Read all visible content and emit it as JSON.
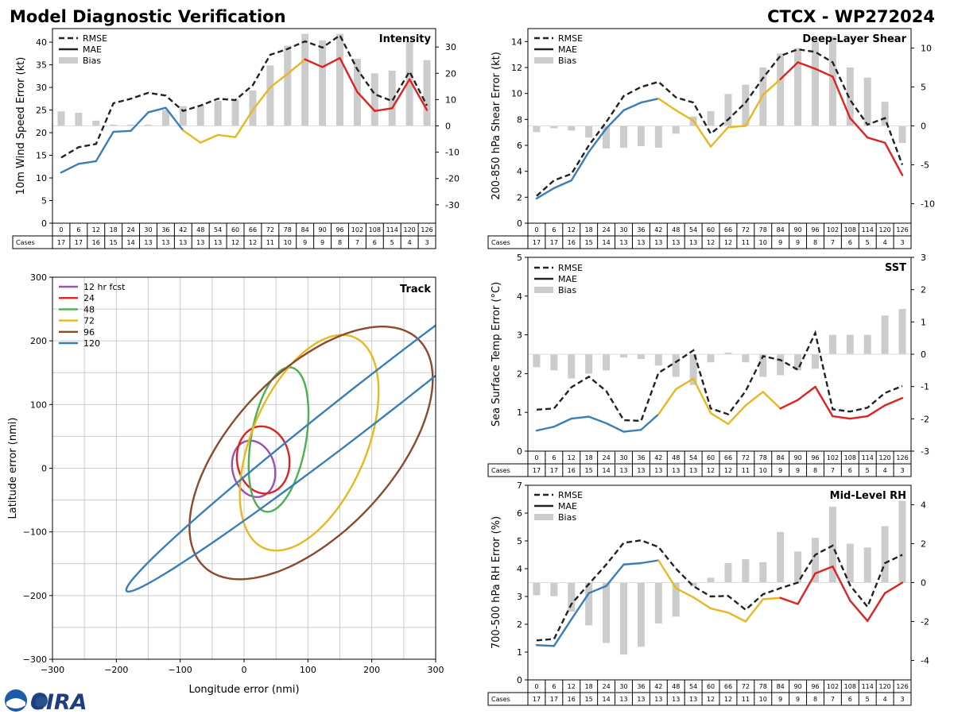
{
  "page": {
    "title": "Model Diagnostic Verification",
    "storm_id": "CTCX - WP272024",
    "logo_text": "CIRA"
  },
  "colors": {
    "early": "#3a7eb8",
    "mid": "#e8b820",
    "late": "#dd2222",
    "rmse": "#222222",
    "bias": "#cccccc",
    "grid": "#cccccc",
    "track_12": "#9b4fb0",
    "track_24": "#dd2222",
    "track_48": "#4caf50",
    "track_72": "#e8b820",
    "track_96": "#8b4a2b",
    "track_120": "#3a7eb8"
  },
  "legend_labels": {
    "rmse": "RMSE",
    "mae": "MAE",
    "bias": "Bias"
  },
  "cases_label": "Cases",
  "lead_times": [
    "0",
    "6",
    "12",
    "18",
    "24",
    "30",
    "36",
    "42",
    "48",
    "54",
    "60",
    "66",
    "72",
    "78",
    "84",
    "90",
    "96",
    "102",
    "108",
    "114",
    "120",
    "126"
  ],
  "cases": [
    "17",
    "17",
    "16",
    "15",
    "14",
    "13",
    "13",
    "13",
    "13",
    "13",
    "12",
    "12",
    "11",
    "10",
    "9",
    "9",
    "8",
    "7",
    "6",
    "5",
    "4",
    "3"
  ],
  "chart_data": [
    {
      "id": "intensity",
      "type": "line",
      "title": "Intensity",
      "ylabel": "10m Wind Speed Error (kt)",
      "ylim": [
        0,
        43
      ],
      "yticks": [
        0,
        5,
        10,
        15,
        20,
        25,
        30,
        35,
        40
      ],
      "y2lim": [
        -37,
        37
      ],
      "y2ticks": [
        -30,
        -20,
        -10,
        0,
        10,
        20,
        30
      ],
      "rmse": [
        14.5,
        16.8,
        17.5,
        26.5,
        27.5,
        28.8,
        28.2,
        24.8,
        26.0,
        27.5,
        27.2,
        30.5,
        37.2,
        38.5,
        40.2,
        38.8,
        41.5,
        34.0,
        28.5,
        27.0,
        33.5,
        26.0
      ],
      "mae": [
        11.2,
        13.1,
        13.7,
        20.2,
        20.4,
        24.5,
        25.5,
        20.5,
        17.8,
        19.5,
        19.0,
        25.0,
        30.0,
        33.0,
        36.2,
        34.5,
        36.5,
        29.0,
        24.8,
        25.4,
        31.8,
        25.0
      ],
      "bias": [
        5.5,
        5.0,
        2.0,
        0.5,
        0.5,
        0.5,
        6.0,
        7.5,
        8.0,
        9.5,
        10.0,
        13.5,
        23.0,
        30.5,
        35.0,
        32.5,
        35.0,
        25.5,
        20.0,
        21.0,
        32.0,
        25.0
      ]
    },
    {
      "id": "shear",
      "type": "line",
      "title": "Deep-Layer Shear",
      "ylabel": "200-850 hPa Shear Error (kt)",
      "ylim": [
        0,
        15
      ],
      "yticks": [
        0,
        2,
        4,
        6,
        8,
        10,
        12,
        14
      ],
      "y2lim": [
        -12.5,
        12.5
      ],
      "y2ticks": [
        -10,
        -5,
        0,
        5,
        10
      ],
      "rmse": [
        2.1,
        3.3,
        3.8,
        6.0,
        7.8,
        9.8,
        10.5,
        10.9,
        9.7,
        9.3,
        6.9,
        8.0,
        9.3,
        11.2,
        12.9,
        13.4,
        13.2,
        12.4,
        9.5,
        7.6,
        8.1,
        4.5
      ],
      "mae": [
        1.9,
        2.7,
        3.3,
        5.5,
        7.3,
        8.7,
        9.3,
        9.6,
        8.7,
        7.9,
        5.9,
        7.4,
        7.5,
        9.9,
        11.1,
        12.4,
        11.9,
        11.3,
        8.1,
        6.6,
        6.2,
        3.7
      ],
      "bias": [
        -0.8,
        -0.3,
        -0.6,
        -1.5,
        -2.9,
        -2.8,
        -2.6,
        -2.8,
        -1.0,
        1.2,
        1.9,
        4.1,
        5.3,
        7.5,
        9.3,
        10.0,
        10.8,
        11.5,
        7.5,
        6.2,
        3.1,
        -2.2
      ]
    },
    {
      "id": "sst",
      "type": "line",
      "title": "SST",
      "ylabel": "Sea Surface Temp Error (°C)",
      "ylim": [
        0,
        5
      ],
      "yticks": [
        0,
        1,
        2,
        3,
        4,
        5
      ],
      "y2lim": [
        -3,
        3
      ],
      "y2ticks": [
        -3,
        -2,
        -1,
        0,
        1,
        2,
        3
      ],
      "rmse": [
        1.07,
        1.1,
        1.65,
        1.92,
        1.55,
        0.8,
        0.78,
        2.02,
        2.3,
        2.6,
        1.1,
        0.95,
        1.55,
        2.45,
        2.35,
        2.1,
        3.05,
        1.08,
        1.02,
        1.12,
        1.5,
        1.68
      ],
      "mae": [
        0.53,
        0.63,
        0.84,
        0.89,
        0.72,
        0.5,
        0.55,
        0.95,
        1.6,
        1.87,
        0.98,
        0.7,
        1.18,
        1.53,
        1.1,
        1.32,
        1.66,
        0.9,
        0.84,
        0.9,
        1.18,
        1.37
      ],
      "bias": [
        -0.4,
        -0.5,
        -0.75,
        -0.6,
        -0.5,
        -0.1,
        -0.15,
        -0.35,
        -0.7,
        -0.95,
        -0.25,
        0.05,
        -0.25,
        -0.7,
        -0.65,
        -0.5,
        -0.45,
        0.6,
        0.6,
        0.6,
        1.2,
        1.4
      ]
    },
    {
      "id": "rh",
      "type": "line",
      "title": "Mid-Level RH",
      "ylabel": "700-500 hPa RH Error (%)",
      "ylim": [
        0,
        7
      ],
      "yticks": [
        0,
        1,
        2,
        3,
        4,
        5,
        6,
        7
      ],
      "y2lim": [
        -5,
        5
      ],
      "y2ticks": [
        -4,
        -2,
        0,
        2,
        4
      ],
      "rmse": [
        1.42,
        1.47,
        2.73,
        3.45,
        4.15,
        4.93,
        5.02,
        4.78,
        4.0,
        3.37,
        3.0,
        3.02,
        2.52,
        3.08,
        3.3,
        3.5,
        4.5,
        4.83,
        3.4,
        2.63,
        4.2,
        4.5
      ],
      "mae": [
        1.25,
        1.22,
        2.18,
        3.12,
        3.38,
        4.15,
        4.2,
        4.3,
        3.3,
        2.97,
        2.57,
        2.42,
        2.1,
        2.9,
        2.95,
        2.73,
        3.83,
        4.08,
        2.85,
        2.12,
        3.12,
        3.5
      ],
      "bias": [
        -0.65,
        -0.7,
        -1.5,
        -2.2,
        -3.1,
        -3.7,
        -3.3,
        -2.1,
        -1.75,
        -0.2,
        0.25,
        1.0,
        1.2,
        1.05,
        2.6,
        1.6,
        2.3,
        3.9,
        2.0,
        1.8,
        2.9,
        4.2
      ]
    },
    {
      "id": "track",
      "type": "scatter",
      "title": "Track",
      "xlabel": "Longitude error (nmi)",
      "ylabel": "Latitude error (nmi)",
      "xlim": [
        -300,
        300
      ],
      "ylim": [
        -300,
        300
      ],
      "ticks": [
        -300,
        -200,
        -100,
        0,
        100,
        200,
        300
      ],
      "legend": [
        "12 hr fcst",
        "24",
        "48",
        "72",
        "96",
        "120"
      ],
      "ellipses": [
        {
          "label": "12 hr fcst",
          "cx": 15,
          "cy": -1,
          "a": 45,
          "b": 33,
          "rot": 105
        },
        {
          "label": "24",
          "cx": 30,
          "cy": 13,
          "a": 53,
          "b": 41,
          "rot": 98
        },
        {
          "label": "48",
          "cx": 54,
          "cy": 45,
          "a": 115,
          "b": 43,
          "rot": 80
        },
        {
          "label": "72",
          "cx": 102,
          "cy": 40,
          "a": 180,
          "b": 90,
          "rot": 67
        },
        {
          "label": "96",
          "cx": 105,
          "cy": 24,
          "a": 245,
          "b": 125,
          "rot": 47
        },
        {
          "label": "120",
          "cx": 210,
          "cy": 115,
          "a": 500,
          "b": 32,
          "rot": 38
        }
      ]
    }
  ]
}
